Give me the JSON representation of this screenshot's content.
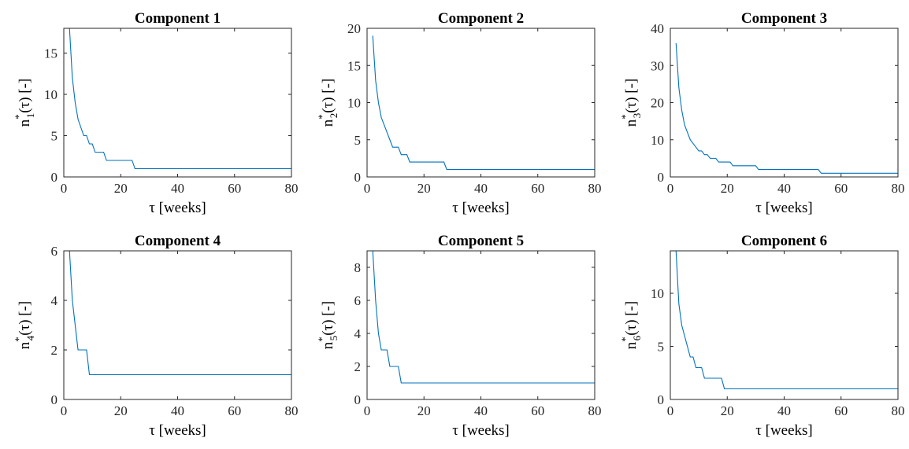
{
  "chart_data": [
    {
      "type": "line",
      "title": "Component 1",
      "xlabel": "τ [weeks]",
      "ylabel": {
        "base": "n",
        "sup": "*",
        "sub": "1",
        "rest": "(τ) [-]"
      },
      "xlim": [
        0,
        80
      ],
      "ylim": [
        0,
        18
      ],
      "xticks": [
        0,
        20,
        40,
        60,
        80
      ],
      "yticks": [
        0,
        5,
        10,
        15
      ],
      "x": [
        2,
        3,
        4,
        5,
        6,
        7,
        8,
        9,
        10,
        11,
        12,
        13,
        14,
        15,
        16,
        24,
        25,
        80
      ],
      "y": [
        18,
        12,
        9,
        7,
        6,
        5,
        5,
        4,
        4,
        3,
        3,
        3,
        3,
        2,
        2,
        2,
        1,
        1
      ]
    },
    {
      "type": "line",
      "title": "Component 2",
      "xlabel": "τ [weeks]",
      "ylabel": {
        "base": "n",
        "sup": "*",
        "sub": "2",
        "rest": "(τ) [-]"
      },
      "xlim": [
        0,
        80
      ],
      "ylim": [
        0,
        20
      ],
      "xticks": [
        0,
        20,
        40,
        60,
        80
      ],
      "yticks": [
        0,
        5,
        10,
        15,
        20
      ],
      "x": [
        2,
        3,
        4,
        5,
        6,
        7,
        8,
        9,
        10,
        11,
        12,
        13,
        14,
        15,
        16,
        27,
        28,
        80
      ],
      "y": [
        19,
        13,
        10,
        8,
        7,
        6,
        5,
        4,
        4,
        4,
        3,
        3,
        3,
        2,
        2,
        2,
        1,
        1
      ]
    },
    {
      "type": "line",
      "title": "Component 3",
      "xlabel": "τ [weeks]",
      "ylabel": {
        "base": "n",
        "sup": "*",
        "sub": "3",
        "rest": "(τ) [-]"
      },
      "xlim": [
        0,
        80
      ],
      "ylim": [
        0,
        40
      ],
      "xticks": [
        0,
        20,
        40,
        60,
        80
      ],
      "yticks": [
        0,
        10,
        20,
        30,
        40
      ],
      "x": [
        2,
        3,
        4,
        5,
        6,
        7,
        8,
        9,
        10,
        11,
        12,
        13,
        14,
        15,
        16,
        17,
        18,
        21,
        22,
        30,
        31,
        52,
        53,
        80
      ],
      "y": [
        36,
        24,
        18,
        14,
        12,
        10,
        9,
        8,
        7,
        7,
        6,
        6,
        5,
        5,
        5,
        4,
        4,
        4,
        3,
        3,
        2,
        2,
        1,
        1
      ]
    },
    {
      "type": "line",
      "title": "Component 4",
      "xlabel": "τ [weeks]",
      "ylabel": {
        "base": "n",
        "sup": "*",
        "sub": "4",
        "rest": "(τ) [-]"
      },
      "xlim": [
        0,
        80
      ],
      "ylim": [
        0,
        6
      ],
      "xticks": [
        0,
        20,
        40,
        60,
        80
      ],
      "yticks": [
        0,
        2,
        4,
        6
      ],
      "x": [
        2,
        3,
        4,
        5,
        8,
        9,
        80
      ],
      "y": [
        6,
        4,
        3,
        2,
        2,
        1,
        1
      ]
    },
    {
      "type": "line",
      "title": "Component 5",
      "xlabel": "τ [weeks]",
      "ylabel": {
        "base": "n",
        "sup": "*",
        "sub": "5",
        "rest": "(τ) [-]"
      },
      "xlim": [
        0,
        80
      ],
      "ylim": [
        0,
        9
      ],
      "xticks": [
        0,
        20,
        40,
        60,
        80
      ],
      "yticks": [
        0,
        2,
        4,
        6,
        8
      ],
      "x": [
        2,
        3,
        4,
        5,
        6,
        7,
        8,
        9,
        10,
        11,
        12,
        80
      ],
      "y": [
        9,
        6,
        4,
        3,
        3,
        3,
        2,
        2,
        2,
        2,
        1,
        1
      ]
    },
    {
      "type": "line",
      "title": "Component 6",
      "xlabel": "τ [weeks]",
      "ylabel": {
        "base": "n",
        "sup": "*",
        "sub": "6",
        "rest": "(τ) [-]"
      },
      "xlim": [
        0,
        80
      ],
      "ylim": [
        0,
        14
      ],
      "xticks": [
        0,
        20,
        40,
        60,
        80
      ],
      "yticks": [
        0,
        5,
        10
      ],
      "x": [
        2,
        3,
        4,
        5,
        6,
        7,
        8,
        9,
        10,
        11,
        12,
        13,
        14,
        15,
        17,
        18,
        19,
        80
      ],
      "y": [
        14,
        9,
        7,
        6,
        5,
        4,
        4,
        3,
        3,
        3,
        2,
        2,
        2,
        2,
        2,
        2,
        1,
        1
      ]
    }
  ]
}
